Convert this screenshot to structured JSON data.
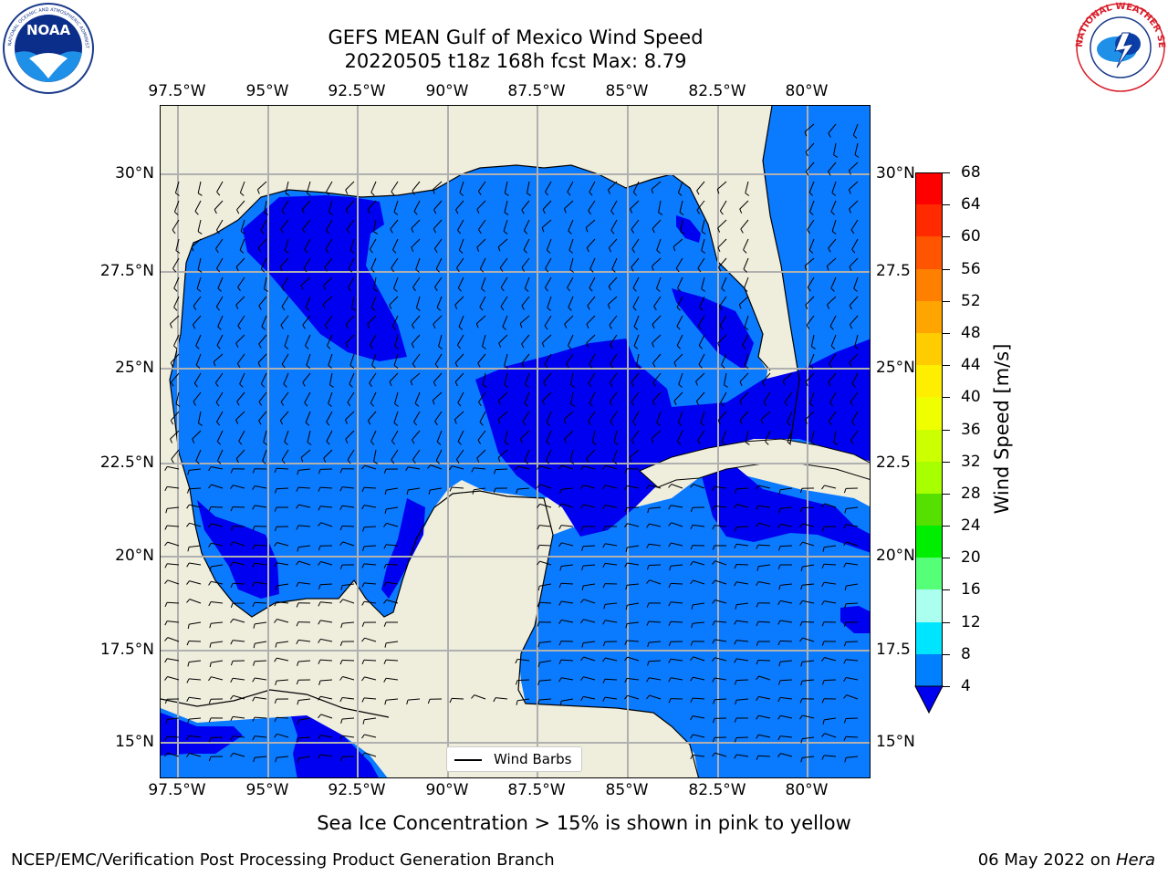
{
  "header": {
    "title_line1": "GEFS MEAN Gulf of Mexico Wind Speed",
    "title_line2": "20220505 t18z 168h fcst   Max: 8.79"
  },
  "logos": {
    "left": {
      "icon": "noaa-logo-icon",
      "text": "NOAA",
      "ring_text": "NATIONAL OCEANIC AND ATMOSPHERIC ADMINISTRATION · U.S. DEPARTMENT OF COMMERCE"
    },
    "right": {
      "icon": "nws-logo-icon",
      "ring_text": "NATIONAL WEATHER SERVICE"
    }
  },
  "map": {
    "lon_labels": [
      "97.5°W",
      "95°W",
      "92.5°W",
      "90°W",
      "87.5°W",
      "85°W",
      "82.5°W",
      "80°W"
    ],
    "lat_labels_left": [
      "30°N",
      "27.5°N",
      "25°N",
      "22.5°N",
      "20°N",
      "17.5°N",
      "15°N"
    ],
    "lat_labels_right": [
      "30°N",
      "27.5",
      "25°N",
      "22.5",
      "20°N",
      "17.5",
      "15°N"
    ],
    "colors": {
      "land": "#efeddc",
      "sea_low": "#0a7aff",
      "sea_dark": "#0000f0",
      "grid": "#b0b0b0"
    }
  },
  "colorbar": {
    "label": "Wind Speed [m/s]",
    "ticks": [
      "68",
      "64",
      "60",
      "56",
      "52",
      "48",
      "44",
      "40",
      "36",
      "32",
      "28",
      "24",
      "20",
      "16",
      "12",
      "8",
      "4"
    ],
    "colors": [
      "#ff0000",
      "#ff2a00",
      "#ff5500",
      "#ff7f00",
      "#ffa500",
      "#ffcc00",
      "#ffee00",
      "#f0ff00",
      "#ccff00",
      "#a8ff00",
      "#55e000",
      "#00ee00",
      "#55ff77",
      "#aaffee",
      "#55ffff",
      "#00ffff",
      "#00e5ff",
      "#007fff"
    ],
    "under_color": "#0000f0"
  },
  "legend": {
    "label": "Wind Barbs"
  },
  "caption": "Sea Ice Concentration > 15% is shown in pink to yellow",
  "footer": {
    "left": "NCEP/EMC/Verification Post Processing Product Generation Branch",
    "right_prefix": "06 May 2022 on ",
    "right_machine": "Hera"
  }
}
